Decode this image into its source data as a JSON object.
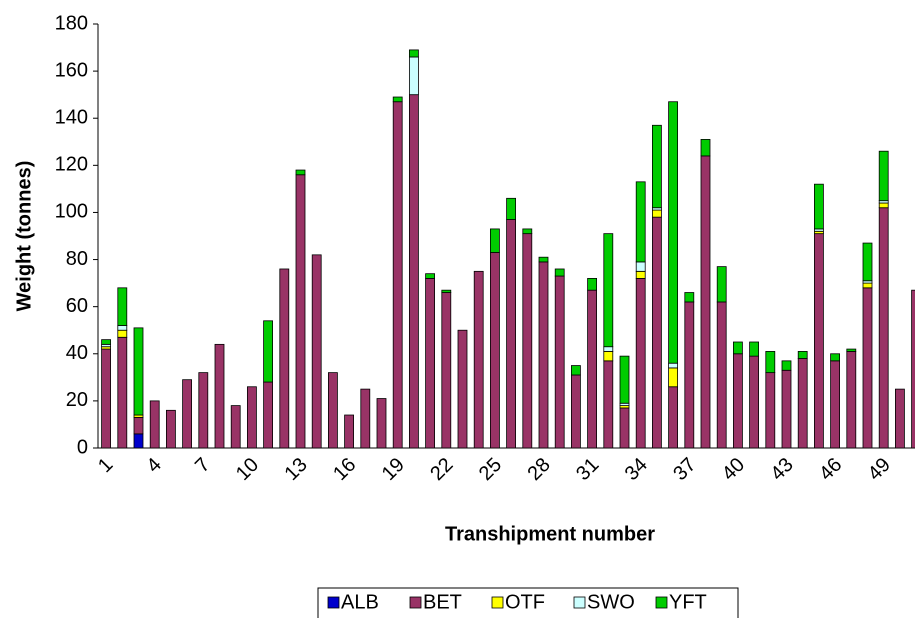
{
  "chart_data": {
    "type": "stacked_bar",
    "xlabel": "Transhipment number",
    "ylabel": "Weight (tonnes)",
    "categories": [
      "1",
      null,
      null,
      "4",
      null,
      null,
      "7",
      null,
      null,
      "10",
      null,
      null,
      "13",
      null,
      null,
      "16",
      null,
      null,
      "19",
      null,
      null,
      "22",
      null,
      null,
      "25",
      null,
      null,
      "28",
      null,
      null,
      "31",
      null,
      null,
      "34",
      null,
      null,
      "37",
      null,
      null,
      "40",
      null,
      null,
      "43",
      null,
      null,
      "46",
      null,
      null,
      "49",
      null,
      null
    ],
    "ylim": [
      0,
      180
    ],
    "yticks": [
      0,
      20,
      40,
      60,
      80,
      100,
      120,
      140,
      160,
      180
    ],
    "grid": false,
    "legend": "bottom",
    "series": [
      {
        "name": "ALB",
        "color": "#0000cc",
        "values": [
          0,
          0,
          6,
          0,
          0,
          0,
          0,
          0,
          0,
          0,
          0,
          0,
          0,
          0,
          0,
          0,
          0,
          0,
          0,
          0,
          0,
          0,
          0,
          0,
          0,
          0,
          0,
          0,
          0,
          0,
          0,
          0,
          0,
          0,
          0,
          0,
          0,
          0,
          0,
          0,
          0,
          0,
          0,
          0,
          0,
          0,
          0,
          0,
          0,
          0,
          0
        ]
      },
      {
        "name": "BET",
        "color": "#993366",
        "values": [
          42,
          47,
          7,
          20,
          16,
          29,
          32,
          44,
          18,
          26,
          28,
          76,
          116,
          82,
          32,
          14,
          25,
          21,
          147,
          150,
          72,
          66,
          50,
          75,
          83,
          97,
          91,
          79,
          73,
          31,
          67,
          37,
          17,
          72,
          98,
          26,
          62,
          124,
          62,
          40,
          39,
          32,
          33,
          38,
          91,
          37,
          41,
          68,
          102,
          25,
          67
        ]
      },
      {
        "name": "OTF",
        "color": "#ffff00",
        "values": [
          1,
          3,
          1,
          0,
          0,
          0,
          0,
          0,
          0,
          0,
          0,
          0,
          0,
          0,
          0,
          0,
          0,
          0,
          0,
          0,
          0,
          0,
          0,
          0,
          0,
          0,
          0,
          0,
          0,
          0,
          0,
          4,
          1,
          3,
          3,
          8,
          0,
          0,
          0,
          0,
          0,
          0,
          0,
          0,
          1,
          0,
          0,
          2,
          2,
          0,
          0
        ]
      },
      {
        "name": "SWO",
        "color": "#ccffff",
        "values": [
          1,
          2,
          0,
          0,
          0,
          0,
          0,
          0,
          0,
          0,
          0,
          0,
          0,
          0,
          0,
          0,
          0,
          0,
          0,
          16,
          0,
          0,
          0,
          0,
          0,
          0,
          0,
          0,
          0,
          0,
          0,
          2,
          1,
          4,
          1,
          2,
          0,
          0,
          0,
          0,
          0,
          0,
          0,
          0,
          1,
          0,
          0,
          1,
          1,
          0,
          0
        ]
      },
      {
        "name": "YFT",
        "color": "#00cc00",
        "values": [
          2,
          16,
          37,
          0,
          0,
          0,
          0,
          0,
          0,
          0,
          26,
          0,
          2,
          0,
          0,
          0,
          0,
          0,
          2,
          3,
          2,
          1,
          0,
          0,
          10,
          9,
          2,
          2,
          3,
          4,
          5,
          48,
          20,
          34,
          35,
          111,
          4,
          7,
          15,
          5,
          6,
          9,
          4,
          3,
          19,
          3,
          1,
          16,
          21,
          0,
          0
        ]
      }
    ]
  }
}
